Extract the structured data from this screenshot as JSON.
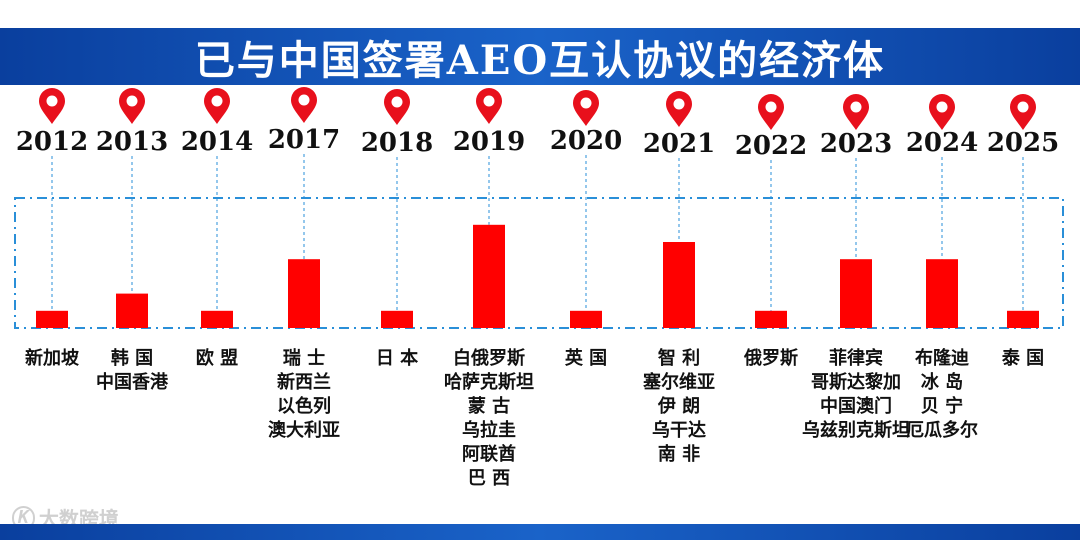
{
  "title": "已与中国签署AEO互认协议的经济体",
  "watermark": "大数跨境",
  "colors": {
    "title_bar": "#1a56c0",
    "bar": "#ff0000",
    "pin": "#e8101c",
    "frame": "#2a8fd8"
  },
  "chart_data": {
    "type": "bar",
    "title": "已与中国签署AEO互认协议的经济体",
    "xlabel": "",
    "ylabel": "",
    "ylim": [
      0,
      6
    ],
    "grid": false,
    "categories": [
      "2012",
      "2013",
      "2014",
      "2017",
      "2018",
      "2019",
      "2020",
      "2021",
      "2022",
      "2023",
      "2024",
      "2025"
    ],
    "values": [
      1,
      2,
      1,
      4,
      1,
      6,
      1,
      5,
      1,
      4,
      4,
      1
    ],
    "economies": [
      [
        "新加坡"
      ],
      [
        "韩 国",
        "中国香港"
      ],
      [
        "欧 盟"
      ],
      [
        "瑞 士",
        "新西兰",
        "以色列",
        "澳大利亚"
      ],
      [
        "日 本"
      ],
      [
        "白俄罗斯",
        "哈萨克斯坦",
        "蒙 古",
        "乌拉圭",
        "阿联酋",
        "巴 西"
      ],
      [
        "英 国"
      ],
      [
        "智 利",
        "塞尔维亚",
        "伊 朗",
        "乌干达",
        "南 非"
      ],
      [
        "俄罗斯"
      ],
      [
        "菲律宾",
        "哥斯达黎加",
        "中国澳门",
        "乌兹别克斯坦"
      ],
      [
        "布隆迪",
        "冰 岛",
        "贝 宁",
        "厄瓜多尔"
      ],
      [
        "泰 国"
      ]
    ]
  }
}
